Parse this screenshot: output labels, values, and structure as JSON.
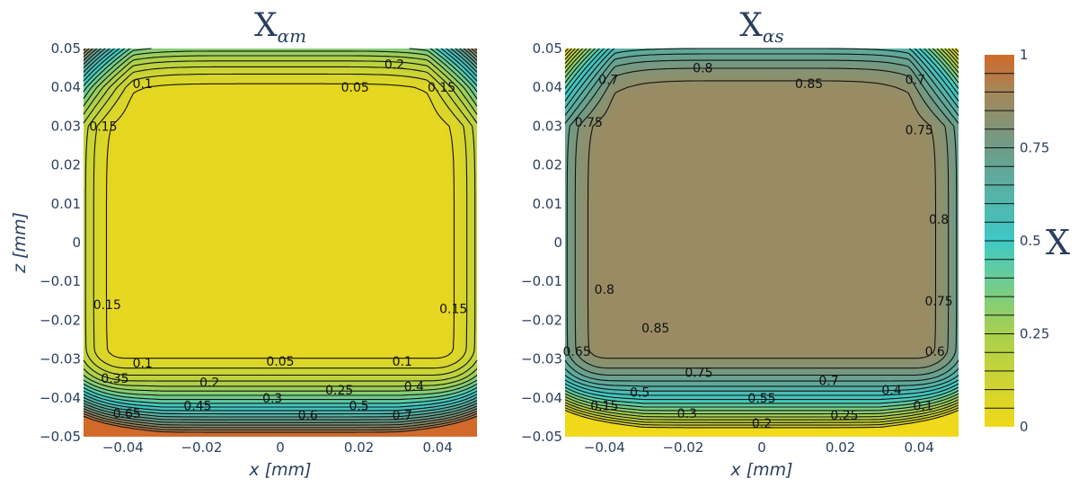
{
  "chart_data": [
    {
      "type": "heatmap",
      "title": "X",
      "title_subscript": "αm",
      "xlabel": "x [mm]",
      "ylabel": "z [mm]",
      "xlim": [
        -0.05,
        0.05
      ],
      "ylim": [
        -0.05,
        0.05
      ],
      "x_ticks": [
        "−0.04",
        "−0.02",
        "0",
        "0.02",
        "0.04"
      ],
      "x_tick_values": [
        -0.04,
        -0.02,
        0,
        0.02,
        0.04
      ],
      "y_ticks": [
        "0.05",
        "0.04",
        "0.03",
        "0.02",
        "0.01",
        "0",
        "−0.01",
        "−0.02",
        "−0.03",
        "−0.04",
        "−0.05"
      ],
      "y_tick_values": [
        0.05,
        0.04,
        0.03,
        0.02,
        0.01,
        0,
        -0.01,
        -0.02,
        -0.03,
        -0.04,
        -0.05
      ],
      "field": "alpha_m",
      "contour_levels": [
        0.05,
        0.1,
        0.15,
        0.2,
        0.25,
        0.3,
        0.35,
        0.4,
        0.45,
        0.5,
        0.55,
        0.6,
        0.65,
        0.7,
        0.75,
        0.8,
        0.85,
        0.9,
        0.95
      ],
      "contour_labels": [
        {
          "text": "0.1",
          "x": -0.035,
          "z": 0.041
        },
        {
          "text": "0.05",
          "x": 0.019,
          "z": 0.04
        },
        {
          "text": "0.2",
          "x": 0.029,
          "z": 0.046
        },
        {
          "text": "0.15",
          "x": 0.041,
          "z": 0.04
        },
        {
          "text": "0.15",
          "x": -0.045,
          "z": 0.03
        },
        {
          "text": "0.15",
          "x": -0.044,
          "z": -0.016
        },
        {
          "text": "0.15",
          "x": 0.044,
          "z": -0.017
        },
        {
          "text": "0.1",
          "x": -0.035,
          "z": -0.031
        },
        {
          "text": "0.05",
          "x": 0.0,
          "z": -0.0305
        },
        {
          "text": "0.1",
          "x": 0.031,
          "z": -0.0305
        },
        {
          "text": "0.35",
          "x": -0.042,
          "z": -0.035
        },
        {
          "text": "0.2",
          "x": -0.018,
          "z": -0.036
        },
        {
          "text": "0.25",
          "x": 0.015,
          "z": -0.038
        },
        {
          "text": "0.4",
          "x": 0.034,
          "z": -0.037
        },
        {
          "text": "0.3",
          "x": -0.002,
          "z": -0.04
        },
        {
          "text": "0.45",
          "x": -0.021,
          "z": -0.042
        },
        {
          "text": "0.5",
          "x": 0.02,
          "z": -0.042
        },
        {
          "text": "0.65",
          "x": -0.039,
          "z": -0.044
        },
        {
          "text": "0.6",
          "x": 0.007,
          "z": -0.0445
        },
        {
          "text": "0.7",
          "x": 0.031,
          "z": -0.0445
        }
      ]
    },
    {
      "type": "heatmap",
      "title": "X",
      "title_subscript": "αs",
      "xlabel": "x [mm]",
      "ylabel": "",
      "xlim": [
        -0.05,
        0.05
      ],
      "ylim": [
        -0.05,
        0.05
      ],
      "x_ticks": [
        "−0.04",
        "−0.02",
        "0",
        "0.02",
        "0.04"
      ],
      "x_tick_values": [
        -0.04,
        -0.02,
        0,
        0.02,
        0.04
      ],
      "y_ticks": [
        "0.05",
        "0.04",
        "0.03",
        "0.02",
        "0.01",
        "0",
        "−0.01",
        "−0.02",
        "−0.03",
        "−0.04",
        "−0.05"
      ],
      "y_tick_values": [
        0.05,
        0.04,
        0.03,
        0.02,
        0.01,
        0,
        -0.01,
        -0.02,
        -0.03,
        -0.04,
        -0.05
      ],
      "field": "alpha_s",
      "contour_levels": [
        0.05,
        0.1,
        0.15,
        0.2,
        0.25,
        0.3,
        0.35,
        0.4,
        0.45,
        0.5,
        0.55,
        0.6,
        0.65,
        0.7,
        0.75,
        0.8,
        0.85,
        0.9,
        0.95
      ],
      "contour_labels": [
        {
          "text": "0.8",
          "x": -0.015,
          "z": 0.045
        },
        {
          "text": "0.85",
          "x": 0.012,
          "z": 0.041
        },
        {
          "text": "0.7",
          "x": -0.039,
          "z": 0.042
        },
        {
          "text": "0.7",
          "x": 0.039,
          "z": 0.042
        },
        {
          "text": "0.75",
          "x": -0.044,
          "z": 0.031
        },
        {
          "text": "0.75",
          "x": 0.04,
          "z": 0.029
        },
        {
          "text": "0.8",
          "x": 0.045,
          "z": 0.006
        },
        {
          "text": "0.8",
          "x": -0.04,
          "z": -0.012
        },
        {
          "text": "0.75",
          "x": 0.045,
          "z": -0.015
        },
        {
          "text": "0.85",
          "x": -0.027,
          "z": -0.022
        },
        {
          "text": "0.65",
          "x": -0.047,
          "z": -0.028
        },
        {
          "text": "0.6",
          "x": 0.044,
          "z": -0.028
        },
        {
          "text": "0.75",
          "x": -0.016,
          "z": -0.0335
        },
        {
          "text": "0.7",
          "x": 0.017,
          "z": -0.0355
        },
        {
          "text": "0.5",
          "x": -0.031,
          "z": -0.0385
        },
        {
          "text": "0.55",
          "x": 0.0,
          "z": -0.04
        },
        {
          "text": "0.4",
          "x": 0.033,
          "z": -0.038
        },
        {
          "text": "0.15",
          "x": -0.04,
          "z": -0.042
        },
        {
          "text": "0.3",
          "x": -0.019,
          "z": -0.044
        },
        {
          "text": "0.2",
          "x": 0.0,
          "z": -0.0465
        },
        {
          "text": "0.25",
          "x": 0.021,
          "z": -0.0445
        },
        {
          "text": "0.1",
          "x": 0.041,
          "z": -0.042
        }
      ]
    }
  ],
  "colorbar": {
    "title": "X",
    "ticks": [
      "0",
      "0.25",
      "0.5",
      "0.75",
      "1"
    ],
    "tick_values": [
      0,
      0.25,
      0.5,
      0.75,
      1
    ],
    "colorscale": [
      [
        0.0,
        "#f0d81a"
      ],
      [
        0.25,
        "#a9d04e"
      ],
      [
        0.5,
        "#3ec9c6"
      ],
      [
        0.75,
        "#6e9c88"
      ],
      [
        0.9,
        "#a5875a"
      ],
      [
        1.0,
        "#d0692a"
      ]
    ]
  }
}
